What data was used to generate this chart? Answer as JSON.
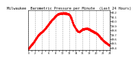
{
  "title": "Milwaukee  Barometric Pressure per Minute  (Last 24 Hours)",
  "line_color": "#ff0000",
  "bg_color": "#ffffff",
  "grid_color": "#888888",
  "ylim": [
    29.35,
    30.25
  ],
  "yticks": [
    29.4,
    29.5,
    29.6,
    29.7,
    29.8,
    29.9,
    30.0,
    30.1,
    30.2
  ],
  "n_points": 1440,
  "marker_size": 0.7,
  "title_fontsize": 3.8,
  "tick_fontsize": 2.8,
  "curve_knots_x": [
    0.0,
    0.015,
    0.06,
    0.12,
    0.2,
    0.3,
    0.38,
    0.44,
    0.5,
    0.56,
    0.62,
    0.67,
    0.72,
    0.78,
    0.84,
    0.9,
    1.0
  ],
  "curve_knots_y": [
    29.38,
    29.42,
    29.52,
    29.68,
    29.82,
    30.05,
    30.17,
    30.18,
    30.15,
    29.9,
    29.76,
    29.82,
    29.83,
    29.78,
    29.72,
    29.6,
    29.45
  ]
}
